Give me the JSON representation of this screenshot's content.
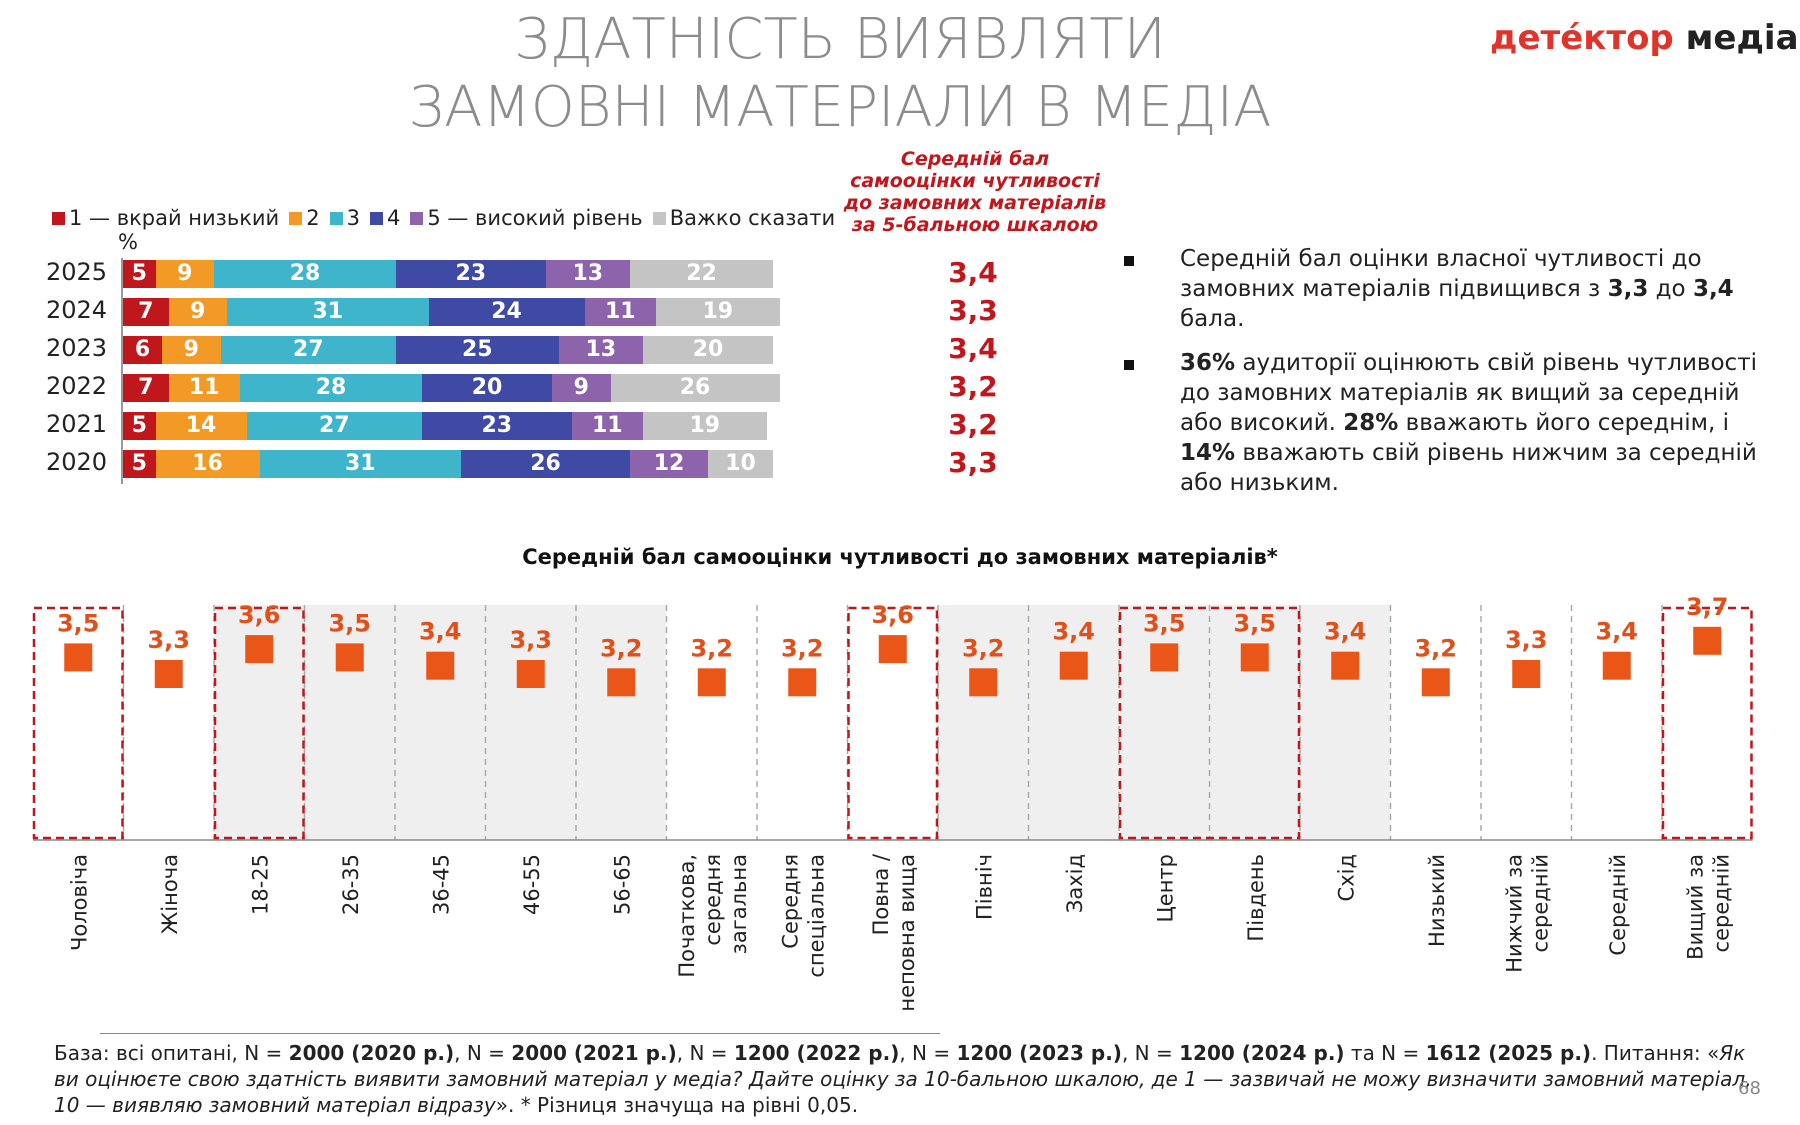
{
  "title": {
    "line1": "ЗДАТНІСТЬ ВИЯВЛЯТИ",
    "line2": "ЗАМОВНІ МАТЕРІАЛИ В МЕДІА"
  },
  "logo": {
    "part1": "детéктор",
    "part2": " медіа"
  },
  "colors": {
    "c1": "#c0171d",
    "c2": "#f39a26",
    "c3": "#3fb5cc",
    "c4": "#3f4aa5",
    "c5": "#8d63ab",
    "na": "#c4c4c4",
    "marker": "#ea5518",
    "label": "#e0501a",
    "highlight": "#c0171d",
    "shade": "#efefef"
  },
  "legend": {
    "l1": "1 — вкрай низький",
    "l2": "2",
    "l3": "3",
    "l4": "4",
    "l5": "5 — високий рівень",
    "na": "Важко сказати"
  },
  "percent_label": "%",
  "avg_header": "Середній бал самооцінки чутливості до замовних матеріалів за 5-бальною шкалою",
  "chart_data": [
    {
      "type": "bar",
      "orientation": "horizontal-stacked",
      "unit": "%",
      "categories": [
        "2025",
        "2024",
        "2023",
        "2022",
        "2021",
        "2020"
      ],
      "series": [
        {
          "name": "1 — вкрай низький",
          "values": [
            5,
            7,
            6,
            7,
            5,
            5
          ]
        },
        {
          "name": "2",
          "values": [
            9,
            9,
            9,
            11,
            14,
            16
          ]
        },
        {
          "name": "3",
          "values": [
            28,
            31,
            27,
            28,
            27,
            31
          ]
        },
        {
          "name": "4",
          "values": [
            23,
            24,
            25,
            20,
            23,
            26
          ]
        },
        {
          "name": "5 — високий рівень",
          "values": [
            13,
            11,
            13,
            9,
            11,
            12
          ]
        },
        {
          "name": "Важко сказати",
          "values": [
            22,
            19,
            20,
            26,
            19,
            10
          ]
        }
      ],
      "averages": [
        "3,4",
        "3,3",
        "3,4",
        "3,2",
        "3,2",
        "3,3"
      ]
    },
    {
      "type": "scatter",
      "title": "Середній бал самооцінки чутливості до замовних матеріалів*",
      "categories": [
        "Чоловіча",
        "Жіноча",
        "18-25",
        "26-35",
        "36-45",
        "46-55",
        "56-65",
        "Початкова, середня загальна",
        "Середня спеціальна",
        "Повна / неповна вища",
        "Північ",
        "Захід",
        "Центр",
        "Південь",
        "Схід",
        "Низький",
        "Нижчий за середній",
        "Середній",
        "Вищий за середній"
      ],
      "category_lines": [
        [
          "Чоловіча"
        ],
        [
          "Жіноча"
        ],
        [
          "18-25"
        ],
        [
          "26-35"
        ],
        [
          "36-45"
        ],
        [
          "46-55"
        ],
        [
          "56-65"
        ],
        [
          "Початкова,",
          "середня",
          "загальна"
        ],
        [
          "Середня",
          "спеціальна"
        ],
        [
          "Повна /",
          "неповна вища"
        ],
        [
          "Північ"
        ],
        [
          "Захід"
        ],
        [
          "Центр"
        ],
        [
          "Південь"
        ],
        [
          "Схід"
        ],
        [
          "Низький"
        ],
        [
          "Нижчий за",
          "середній"
        ],
        [
          "Середній"
        ],
        [
          "Вищий за",
          "середній"
        ]
      ],
      "values": [
        3.5,
        3.3,
        3.6,
        3.5,
        3.4,
        3.3,
        3.2,
        3.2,
        3.2,
        3.6,
        3.2,
        3.4,
        3.5,
        3.5,
        3.4,
        3.2,
        3.3,
        3.4,
        3.7
      ],
      "value_labels": [
        "3,5",
        "3,3",
        "3,6",
        "3,5",
        "3,4",
        "3,3",
        "3,2",
        "3,2",
        "3,2",
        "3,6",
        "3,2",
        "3,4",
        "3,5",
        "3,5",
        "3,4",
        "3,2",
        "3,3",
        "3,4",
        "3,7"
      ],
      "shaded_indices": [
        2,
        3,
        4,
        5,
        6,
        10,
        11,
        12,
        13,
        14
      ],
      "highlighted_groups": [
        [
          0,
          0
        ],
        [
          2,
          2
        ],
        [
          9,
          9
        ],
        [
          12,
          13
        ],
        [
          18,
          18
        ]
      ],
      "note": "* Різниця значуща на рівні 0,05."
    }
  ],
  "bullets": [
    [
      {
        "t": "Середній бал оцінки власної чутливості до замовних матеріалів підвищився з ",
        "b": false
      },
      {
        "t": "3,3",
        "b": true
      },
      {
        "t": " до ",
        "b": false
      },
      {
        "t": "3,4",
        "b": true
      },
      {
        "t": " бала.",
        "b": false
      }
    ],
    [
      {
        "t": "36%",
        "b": true
      },
      {
        "t": " аудиторії оцінюють свій рівень чутливості до замовних матеріалів як вищий за середній або високий. ",
        "b": false
      },
      {
        "t": "28%",
        "b": true
      },
      {
        "t": " вважають його середнім, і ",
        "b": false
      },
      {
        "t": "14%",
        "b": true
      },
      {
        "t": " вважають свій рівень нижчим за середній або низьким.",
        "b": false
      }
    ]
  ],
  "footer": [
    {
      "t": "База: всі опитані, N = ",
      "s": "n"
    },
    {
      "t": "2000 (2020 р.)",
      "s": "b"
    },
    {
      "t": ", N = ",
      "s": "n"
    },
    {
      "t": "2000 (2021 р.)",
      "s": "b"
    },
    {
      "t": ", N = ",
      "s": "n"
    },
    {
      "t": "1200 (2022 р.)",
      "s": "b"
    },
    {
      "t": ", N = ",
      "s": "n"
    },
    {
      "t": "1200 (2023 р.)",
      "s": "b"
    },
    {
      "t": ", N = ",
      "s": "n"
    },
    {
      "t": "1200 (2024 р.)",
      "s": "b"
    },
    {
      "t": " та N = ",
      "s": "n"
    },
    {
      "t": "1612 (2025 р.)",
      "s": "b"
    },
    {
      "t": ". Питання: «",
      "s": "n"
    },
    {
      "t": "Як ви оцінюєте свою здатність виявити замовний матеріал у медіа? Дайте оцінку за 10-бальною шкалою, де 1 — зазвичай не можу визначити замовний матеріал, 10 — виявляю замовний матеріал відразу",
      "s": "i"
    },
    {
      "t": "».   * Різниця значуща на рівні 0,05.",
      "s": "n"
    }
  ],
  "page_number": "68"
}
